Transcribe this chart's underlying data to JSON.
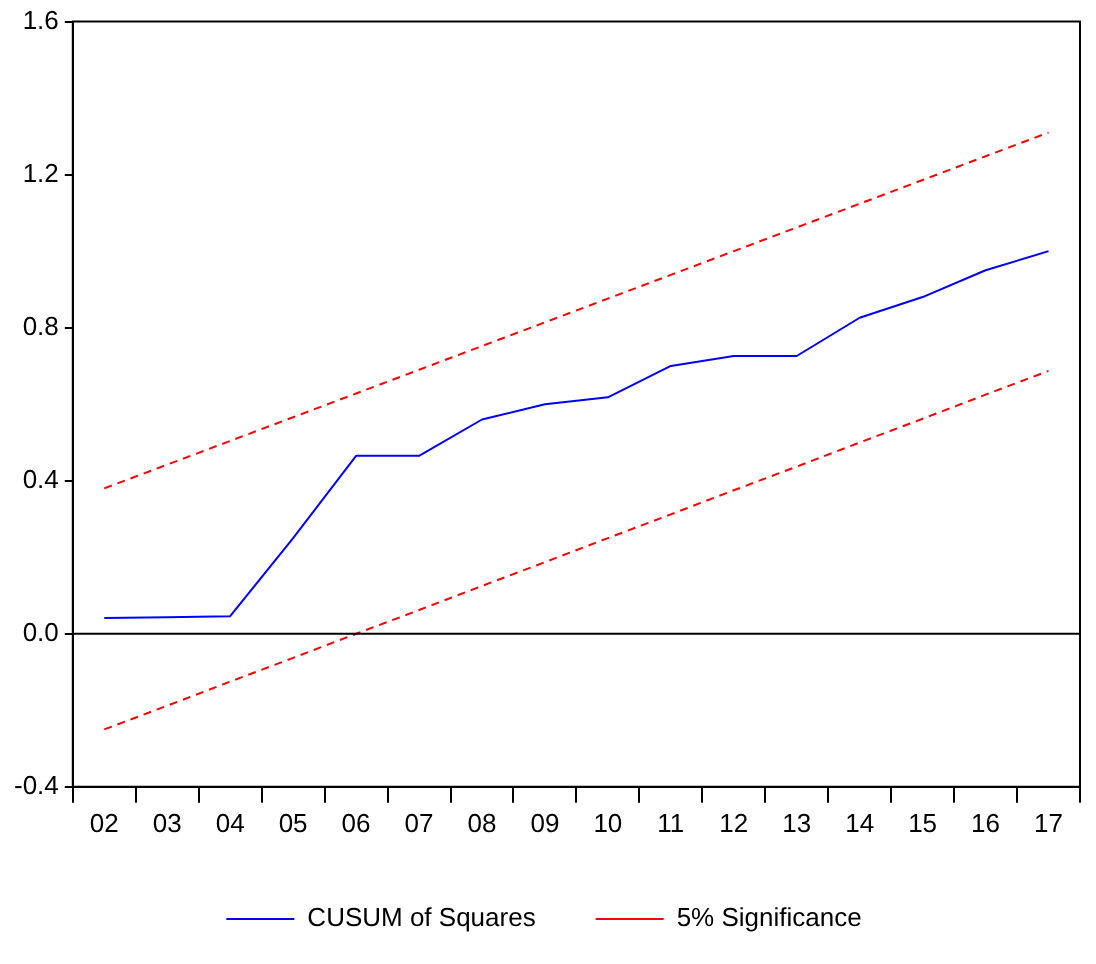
{
  "chart_data": {
    "type": "line",
    "categories": [
      "02",
      "03",
      "04",
      "05",
      "06",
      "07",
      "08",
      "09",
      "10",
      "11",
      "12",
      "13",
      "14",
      "15",
      "16",
      "17"
    ],
    "series": [
      {
        "name": "CUSUM of Squares",
        "color": "#0000ff",
        "line_style": "solid",
        "values": [
          0.041,
          0.043,
          0.046,
          0.25,
          0.465,
          0.465,
          0.56,
          0.6,
          0.618,
          0.7,
          0.726,
          0.726,
          0.826,
          0.88,
          0.95,
          1.0
        ]
      },
      {
        "name": "5% Significance",
        "color": "#ff0000",
        "line_style": "dashed",
        "values": [
          0.38,
          0.442,
          0.504,
          0.566,
          0.628,
          0.69,
          0.752,
          0.814,
          0.876,
          0.938,
          1.0,
          1.062,
          1.124,
          1.186,
          1.248,
          1.31
        ]
      },
      {
        "color": "#ff0000",
        "line_style": "dashed",
        "values": [
          -0.25,
          -0.188,
          -0.125,
          -0.063,
          0.0,
          0.062,
          0.125,
          0.187,
          0.25,
          0.312,
          0.375,
          0.437,
          0.5,
          0.562,
          0.625,
          0.687
        ]
      }
    ],
    "ylim": [
      -0.4,
      1.6
    ],
    "yticks": [
      {
        "value": -0.4,
        "label": "-0.4"
      },
      {
        "value": 0,
        "label": "0.0"
      },
      {
        "value": 0.4,
        "label": "0.4"
      },
      {
        "value": 0.8,
        "label": "0.8"
      },
      {
        "value": 1.2,
        "label": "1.2"
      },
      {
        "value": 1.6,
        "label": "1.6"
      }
    ],
    "ref_lines": [
      {
        "axis": "y",
        "value": 0,
        "color": "#000000"
      }
    ],
    "grid": false,
    "legend": "bottom",
    "marker": "none"
  }
}
